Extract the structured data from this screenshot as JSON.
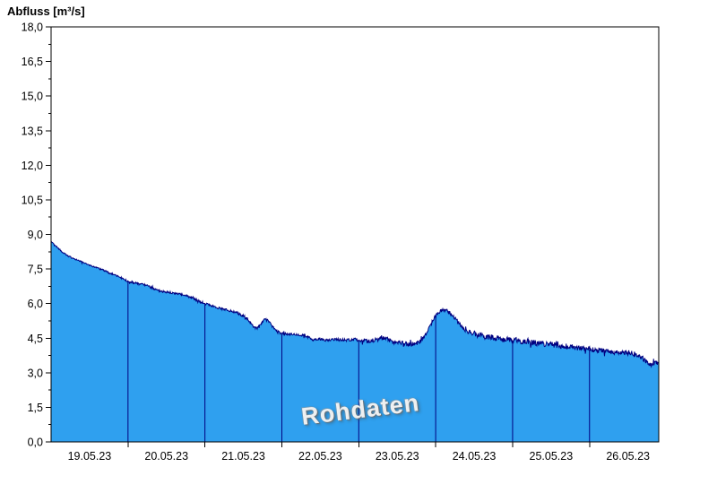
{
  "header": {
    "title": "Abfluss [m³/s]"
  },
  "watermark": {
    "label": "Rohdaten"
  },
  "colors": {
    "background": "#ffffff",
    "area_fill": "#2fa0ef",
    "series_line": "#000080",
    "day_gridline": "#000080",
    "axis": "#000000",
    "label_text": "#000000"
  },
  "chart_data": {
    "type": "area",
    "title": "Abfluss [m³/s]",
    "ylabel": "Abfluss [m³/s]",
    "xlabel": "",
    "unit": "m³/s",
    "ylim": [
      0,
      18
    ],
    "ytick_step": 1.5,
    "yticks": [
      {
        "label": "0,0",
        "value": 0
      },
      {
        "label": "1,5",
        "value": 1.5
      },
      {
        "label": "3,0",
        "value": 3
      },
      {
        "label": "4,5",
        "value": 4.5
      },
      {
        "label": "6,0",
        "value": 6
      },
      {
        "label": "7,5",
        "value": 7.5
      },
      {
        "label": "9,0",
        "value": 9
      },
      {
        "label": "10,5",
        "value": 10.5
      },
      {
        "label": "12,0",
        "value": 12
      },
      {
        "label": "13,5",
        "value": 13.5
      },
      {
        "label": "15,0",
        "value": 15
      },
      {
        "label": "16,5",
        "value": 16.5
      },
      {
        "label": "18,0",
        "value": 18
      }
    ],
    "x_days": [
      "19.05.23",
      "20.05.23",
      "21.05.23",
      "22.05.23",
      "23.05.23",
      "24.05.23",
      "25.05.23",
      "26.05.23"
    ],
    "x_domain_days": [
      0,
      7.9
    ],
    "day_boundaries": [
      1,
      2,
      3,
      4,
      5,
      6,
      7
    ],
    "grid": {
      "horizontal": false,
      "vertical": "day-boundary-lines-inside-filled-area"
    },
    "legend_position": "none",
    "series": [
      {
        "name": "Rohdaten",
        "unit": "m³/s",
        "points": [
          [
            0.0,
            8.72
          ],
          [
            0.03,
            8.6
          ],
          [
            0.06,
            8.5
          ],
          [
            0.1,
            8.38
          ],
          [
            0.14,
            8.25
          ],
          [
            0.18,
            8.15
          ],
          [
            0.22,
            8.06
          ],
          [
            0.26,
            8.0
          ],
          [
            0.3,
            7.95
          ],
          [
            0.34,
            7.9
          ],
          [
            0.38,
            7.84
          ],
          [
            0.42,
            7.78
          ],
          [
            0.46,
            7.72
          ],
          [
            0.5,
            7.67
          ],
          [
            0.54,
            7.62
          ],
          [
            0.58,
            7.57
          ],
          [
            0.62,
            7.52
          ],
          [
            0.66,
            7.47
          ],
          [
            0.7,
            7.42
          ],
          [
            0.74,
            7.36
          ],
          [
            0.78,
            7.3
          ],
          [
            0.82,
            7.25
          ],
          [
            0.86,
            7.2
          ],
          [
            0.9,
            7.14
          ],
          [
            0.95,
            7.05
          ],
          [
            1.0,
            6.96
          ],
          [
            1.05,
            6.92
          ],
          [
            1.1,
            6.89
          ],
          [
            1.15,
            6.86
          ],
          [
            1.2,
            6.83
          ],
          [
            1.25,
            6.78
          ],
          [
            1.3,
            6.7
          ],
          [
            1.35,
            6.62
          ],
          [
            1.4,
            6.56
          ],
          [
            1.45,
            6.52
          ],
          [
            1.5,
            6.5
          ],
          [
            1.55,
            6.48
          ],
          [
            1.6,
            6.46
          ],
          [
            1.65,
            6.43
          ],
          [
            1.7,
            6.4
          ],
          [
            1.75,
            6.35
          ],
          [
            1.8,
            6.28
          ],
          [
            1.85,
            6.21
          ],
          [
            1.9,
            6.14
          ],
          [
            1.95,
            6.07
          ],
          [
            2.0,
            6.0
          ],
          [
            2.05,
            5.94
          ],
          [
            2.1,
            5.89
          ],
          [
            2.15,
            5.84
          ],
          [
            2.2,
            5.79
          ],
          [
            2.25,
            5.75
          ],
          [
            2.3,
            5.71
          ],
          [
            2.35,
            5.67
          ],
          [
            2.4,
            5.62
          ],
          [
            2.45,
            5.55
          ],
          [
            2.5,
            5.46
          ],
          [
            2.55,
            5.32
          ],
          [
            2.6,
            5.12
          ],
          [
            2.65,
            4.96
          ],
          [
            2.68,
            4.92
          ],
          [
            2.71,
            5.02
          ],
          [
            2.74,
            5.18
          ],
          [
            2.77,
            5.28
          ],
          [
            2.8,
            5.3
          ],
          [
            2.83,
            5.22
          ],
          [
            2.86,
            5.08
          ],
          [
            2.9,
            4.92
          ],
          [
            2.94,
            4.8
          ],
          [
            2.97,
            4.74
          ],
          [
            3.0,
            4.7
          ],
          [
            3.06,
            4.68
          ],
          [
            3.12,
            4.67
          ],
          [
            3.18,
            4.66
          ],
          [
            3.24,
            4.65
          ],
          [
            3.3,
            4.62
          ],
          [
            3.34,
            4.54
          ],
          [
            3.38,
            4.46
          ],
          [
            3.42,
            4.42
          ],
          [
            3.46,
            4.44
          ],
          [
            3.5,
            4.46
          ],
          [
            3.54,
            4.43
          ],
          [
            3.58,
            4.41
          ],
          [
            3.62,
            4.42
          ],
          [
            3.66,
            4.44
          ],
          [
            3.7,
            4.45
          ],
          [
            3.74,
            4.44
          ],
          [
            3.78,
            4.43
          ],
          [
            3.82,
            4.42
          ],
          [
            3.86,
            4.42
          ],
          [
            3.9,
            4.43
          ],
          [
            3.95,
            4.43
          ],
          [
            4.0,
            4.42
          ],
          [
            4.05,
            4.4
          ],
          [
            4.1,
            4.38
          ],
          [
            4.15,
            4.38
          ],
          [
            4.2,
            4.4
          ],
          [
            4.25,
            4.44
          ],
          [
            4.3,
            4.48
          ],
          [
            4.34,
            4.5
          ],
          [
            4.38,
            4.44
          ],
          [
            4.42,
            4.36
          ],
          [
            4.46,
            4.32
          ],
          [
            4.5,
            4.3
          ],
          [
            4.55,
            4.28
          ],
          [
            4.6,
            4.26
          ],
          [
            4.65,
            4.24
          ],
          [
            4.7,
            4.24
          ],
          [
            4.75,
            4.27
          ],
          [
            4.8,
            4.36
          ],
          [
            4.85,
            4.55
          ],
          [
            4.9,
            4.85
          ],
          [
            4.95,
            5.2
          ],
          [
            5.0,
            5.48
          ],
          [
            5.04,
            5.62
          ],
          [
            5.08,
            5.7
          ],
          [
            5.12,
            5.73
          ],
          [
            5.15,
            5.68
          ],
          [
            5.18,
            5.6
          ],
          [
            5.22,
            5.48
          ],
          [
            5.26,
            5.33
          ],
          [
            5.3,
            5.16
          ],
          [
            5.34,
            5.0
          ],
          [
            5.38,
            4.88
          ],
          [
            5.42,
            4.8
          ],
          [
            5.46,
            4.74
          ],
          [
            5.5,
            4.69
          ],
          [
            5.55,
            4.64
          ],
          [
            5.6,
            4.6
          ],
          [
            5.65,
            4.57
          ],
          [
            5.7,
            4.54
          ],
          [
            5.75,
            4.51
          ],
          [
            5.8,
            4.49
          ],
          [
            5.85,
            4.47
          ],
          [
            5.9,
            4.45
          ],
          [
            5.95,
            4.43
          ],
          [
            6.0,
            4.41
          ],
          [
            6.1,
            4.37
          ],
          [
            6.2,
            4.33
          ],
          [
            6.3,
            4.29
          ],
          [
            6.4,
            4.26
          ],
          [
            6.5,
            4.22
          ],
          [
            6.6,
            4.18
          ],
          [
            6.7,
            4.14
          ],
          [
            6.8,
            4.1
          ],
          [
            6.9,
            4.05
          ],
          [
            7.0,
            4.01
          ],
          [
            7.1,
            3.97
          ],
          [
            7.2,
            3.94
          ],
          [
            7.3,
            3.91
          ],
          [
            7.4,
            3.89
          ],
          [
            7.5,
            3.87
          ],
          [
            7.55,
            3.84
          ],
          [
            7.6,
            3.79
          ],
          [
            7.65,
            3.71
          ],
          [
            7.7,
            3.6
          ],
          [
            7.74,
            3.48
          ],
          [
            7.78,
            3.38
          ],
          [
            7.81,
            3.34
          ],
          [
            7.84,
            3.4
          ],
          [
            7.87,
            3.45
          ],
          [
            7.9,
            3.42
          ]
        ]
      }
    ],
    "noise": {
      "seed": 20230519,
      "sample_count": 1300,
      "spike_chance": 0.05,
      "spike_factor": 2.2,
      "amplitude_keypoints": [
        [
          0,
          0.03
        ],
        [
          0.5,
          0.035
        ],
        [
          1,
          0.04
        ],
        [
          1.9,
          0.05
        ],
        [
          2.3,
          0.05
        ],
        [
          2.6,
          0.07
        ],
        [
          3.0,
          0.05
        ],
        [
          3.35,
          0.06
        ],
        [
          3.9,
          0.06
        ],
        [
          4.05,
          0.1
        ],
        [
          4.75,
          0.1
        ],
        [
          4.95,
          0.06
        ],
        [
          5.3,
          0.07
        ],
        [
          5.5,
          0.13
        ],
        [
          6.0,
          0.13
        ],
        [
          6.5,
          0.12
        ],
        [
          7.0,
          0.12
        ],
        [
          7.6,
          0.11
        ],
        [
          7.9,
          0.1
        ]
      ]
    }
  }
}
